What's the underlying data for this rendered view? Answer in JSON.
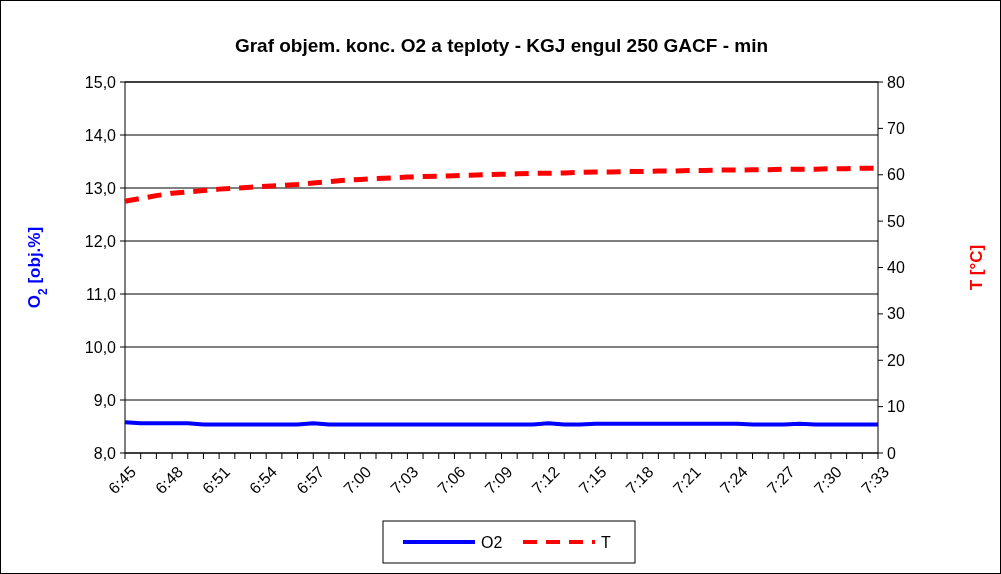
{
  "chart_data": {
    "type": "line",
    "title": "Graf objem. konc. O2 a teploty - KGJ engul 250 GACF - min",
    "ylabel": "O$_{2}$ [obj.%]",
    "y2label": "T [°C]",
    "categories": [
      "6:45",
      null,
      null,
      "6:48",
      null,
      null,
      "6:51",
      null,
      null,
      "6:54",
      null,
      null,
      "6:57",
      null,
      null,
      "7:00",
      null,
      null,
      "7:03",
      null,
      null,
      "7:06",
      null,
      null,
      "7:09",
      null,
      null,
      "7:12",
      null,
      null,
      "7:15",
      null,
      null,
      "7:18",
      null,
      null,
      "7:21",
      null,
      null,
      "7:24",
      null,
      null,
      "7:27",
      null,
      null,
      "7:30",
      null,
      null,
      "7:33"
    ],
    "series": [
      {
        "name": "O2",
        "color": "#0000ff",
        "line_style": "solid",
        "values": [
          8.58,
          8.56,
          8.56,
          8.56,
          8.56,
          8.54,
          8.54,
          8.54,
          8.54,
          8.54,
          8.54,
          8.54,
          8.56,
          8.54,
          8.54,
          8.54,
          8.54,
          8.54,
          8.54,
          8.54,
          8.54,
          8.54,
          8.54,
          8.54,
          8.54,
          8.54,
          8.54,
          8.56,
          8.54,
          8.54,
          8.55,
          8.55,
          8.55,
          8.55,
          8.55,
          8.55,
          8.55,
          8.55,
          8.55,
          8.55,
          8.54,
          8.54,
          8.54,
          8.55,
          8.54,
          8.54,
          8.54,
          8.54,
          8.54
        ]
      },
      {
        "name": "T",
        "color": "#ff0000",
        "line_style": "dashed",
        "axis": "y2",
        "values": [
          54.3,
          54.9,
          55.5,
          56.0,
          56.3,
          56.6,
          56.9,
          57.1,
          57.3,
          57.5,
          57.7,
          57.9,
          58.2,
          58.5,
          58.8,
          59.0,
          59.2,
          59.3,
          59.5,
          59.6,
          59.7,
          59.8,
          59.9,
          60.0,
          60.1,
          60.2,
          60.3,
          60.3,
          60.4,
          60.5,
          60.6,
          60.6,
          60.7,
          60.7,
          60.8,
          60.8,
          60.9,
          60.9,
          61.0,
          61.0,
          61.1,
          61.1,
          61.2,
          61.2,
          61.2,
          61.3,
          61.3,
          61.4,
          61.4
        ]
      }
    ],
    "ylim": [
      8,
      15
    ],
    "yticks": [
      {
        "value": 8,
        "label": "8,0"
      },
      {
        "value": 9,
        "label": "9,0"
      },
      {
        "value": 10,
        "label": "10,0"
      },
      {
        "value": 11,
        "label": "11,0"
      },
      {
        "value": 12,
        "label": "12,0"
      },
      {
        "value": 13,
        "label": "13,0"
      },
      {
        "value": 14,
        "label": "14,0"
      },
      {
        "value": 15,
        "label": "15,0"
      }
    ],
    "y2lim": [
      0,
      80
    ],
    "y2ticks": [
      0,
      10,
      20,
      30,
      40,
      50,
      60,
      70,
      80
    ],
    "grid": "y",
    "legend": "bottom",
    "marker": "none"
  }
}
